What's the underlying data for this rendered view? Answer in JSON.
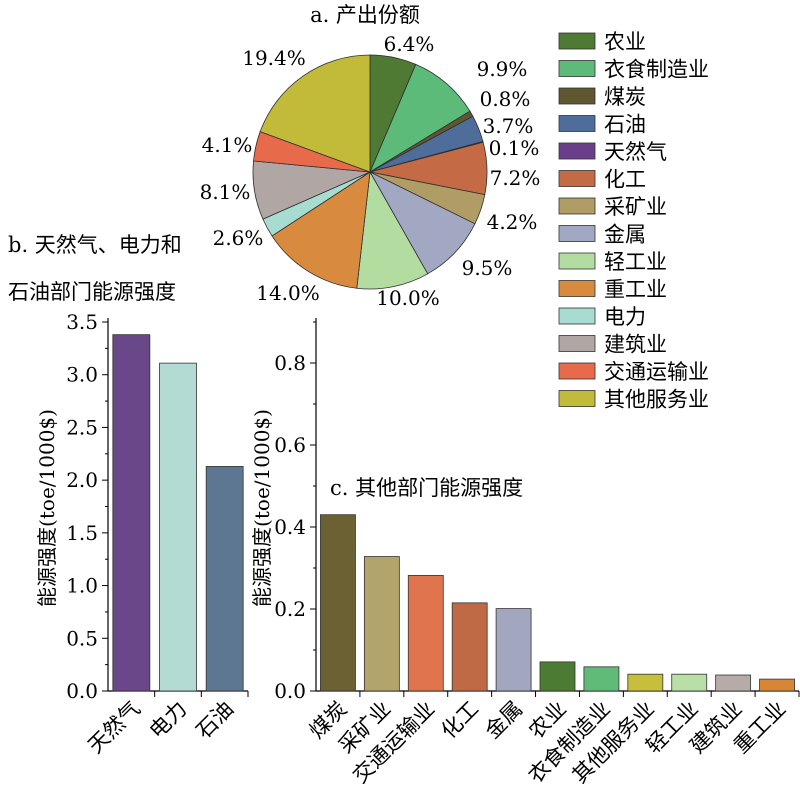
{
  "chart_data": [
    {
      "id": "a",
      "type": "pie",
      "title": "a. 产出份额",
      "categories": [
        "农业",
        "衣食制造业",
        "煤炭",
        "石油",
        "天然气",
        "化工",
        "采矿业",
        "金属",
        "轻工业",
        "重工业",
        "电力",
        "建筑业",
        "交通运输业",
        "其他服务业"
      ],
      "values": [
        6.4,
        9.9,
        0.8,
        3.7,
        0.1,
        7.2,
        4.2,
        9.5,
        10.0,
        14.0,
        2.6,
        8.1,
        4.1,
        19.4
      ],
      "labels": [
        "6.4%",
        "9.9%",
        "0.8%",
        "3.7%",
        "0.1%",
        "7.2%",
        "4.2%",
        "9.5%",
        "10.0%",
        "14.0%",
        "2.6%",
        "8.1%",
        "4.1%",
        "19.4%"
      ],
      "colors": [
        "#4e7a33",
        "#5dbb7a",
        "#5f5730",
        "#4f6d9b",
        "#6a3f8a",
        "#c46a45",
        "#b09c65",
        "#a3a8c2",
        "#b3dda0",
        "#d88a3f",
        "#a9dcd0",
        "#b0a6a4",
        "#e76a4b",
        "#c2bb3a"
      ],
      "legend": "right"
    },
    {
      "id": "b",
      "type": "bar",
      "title_lines": [
        "b. 天然气、电力和",
        "石油部门能源强度"
      ],
      "categories": [
        "天然气",
        "电力",
        "石油"
      ],
      "values": [
        3.38,
        3.11,
        2.13
      ],
      "colors": [
        "#6a4788",
        "#b3dbd3",
        "#5d7691"
      ],
      "ylabel": "能源强度(toe/1000$)",
      "ylim": [
        0,
        3.5
      ],
      "yticks": [
        "0.0",
        "0.5",
        "1.0",
        "1.5",
        "2.0",
        "2.5",
        "3.0",
        "3.5"
      ]
    },
    {
      "id": "c",
      "type": "bar",
      "title": "c. 其他部门能源强度",
      "categories": [
        "煤炭",
        "采矿业",
        "交通运输业",
        "化工",
        "金属",
        "农业",
        "衣食制造业",
        "其他服务业",
        "轻工业",
        "建筑业",
        "重工业"
      ],
      "values": [
        0.43,
        0.328,
        0.282,
        0.215,
        0.201,
        0.071,
        0.059,
        0.041,
        0.041,
        0.039,
        0.029
      ],
      "colors": [
        "#6b6132",
        "#b3a46b",
        "#e0744e",
        "#bf6a45",
        "#a3a6bf",
        "#4c7b34",
        "#5fbb78",
        "#c7bf3c",
        "#b7dfa6",
        "#b7abaa",
        "#d68635"
      ],
      "ylabel": "能源强度(toe/1000$)",
      "ylim": [
        0,
        0.9
      ],
      "yticks": [
        "0.0",
        "0.2",
        "0.4",
        "0.6",
        "0.8"
      ]
    }
  ]
}
